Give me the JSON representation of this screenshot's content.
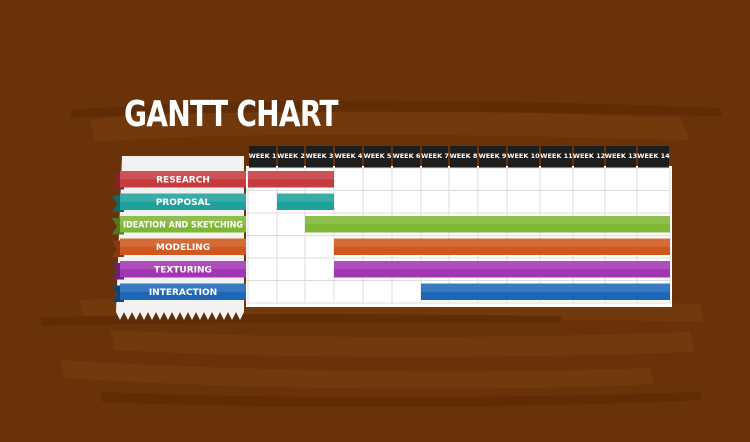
{
  "colors": {
    "background": "#6a3208",
    "week_header": "#1e1e1e",
    "grid_line": "#dcdcdc"
  },
  "chart_data": {
    "type": "bar",
    "title": "GANTT CHART",
    "x_unit": "week",
    "categories": [
      "WEEK 1",
      "WEEK 2",
      "WEEK 3",
      "WEEK 4",
      "WEEK 5",
      "WEEK 6",
      "WEEK 7",
      "WEEK 8",
      "WEEK 9",
      "WEEK 10",
      "WEEK 11",
      "WEEK 12",
      "WEEK 13",
      "WEEK 14"
    ],
    "tasks": [
      {
        "label": "RESEARCH",
        "start_week": 1,
        "end_week": 3,
        "color": "#c63b3e"
      },
      {
        "label": "PROPOSAL",
        "start_week": 2,
        "end_week": 3,
        "color": "#1fa19b"
      },
      {
        "label": "IDEATION AND SKETCHING",
        "start_week": 3,
        "end_week": 14,
        "color": "#7fb734"
      },
      {
        "label": "MODELING",
        "start_week": 4,
        "end_week": 14,
        "color": "#d0571d"
      },
      {
        "label": "TEXTURING",
        "start_week": 4,
        "end_week": 14,
        "color": "#a236b2"
      },
      {
        "label": "INTERACTION",
        "start_week": 7,
        "end_week": 14,
        "color": "#1e67b8"
      }
    ]
  }
}
